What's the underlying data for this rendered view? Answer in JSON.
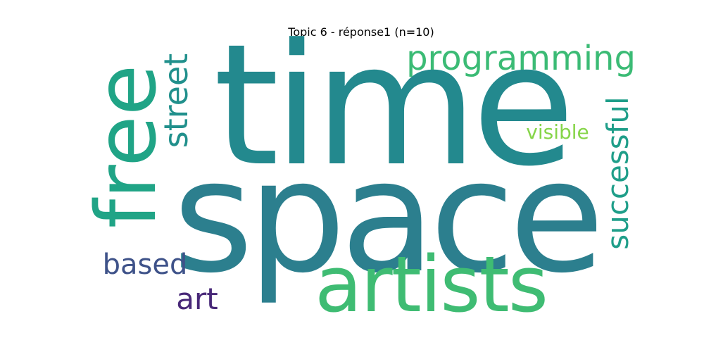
{
  "title": "Topic 6 - réponse1 (n=10)",
  "words": [
    {
      "text": "time",
      "color": "#23898e"
    },
    {
      "text": "space",
      "color": "#2c7f8e"
    },
    {
      "text": "artists",
      "color": "#3fbc73"
    },
    {
      "text": "free",
      "color": "#20a486"
    },
    {
      "text": "programming",
      "color": "#3bbb75"
    },
    {
      "text": "street",
      "color": "#21908c"
    },
    {
      "text": "successful",
      "color": "#1f9e89"
    },
    {
      "text": "visible",
      "color": "#86d549"
    },
    {
      "text": "based",
      "color": "#3e5289"
    },
    {
      "text": "art",
      "color": "#482878"
    }
  ]
}
